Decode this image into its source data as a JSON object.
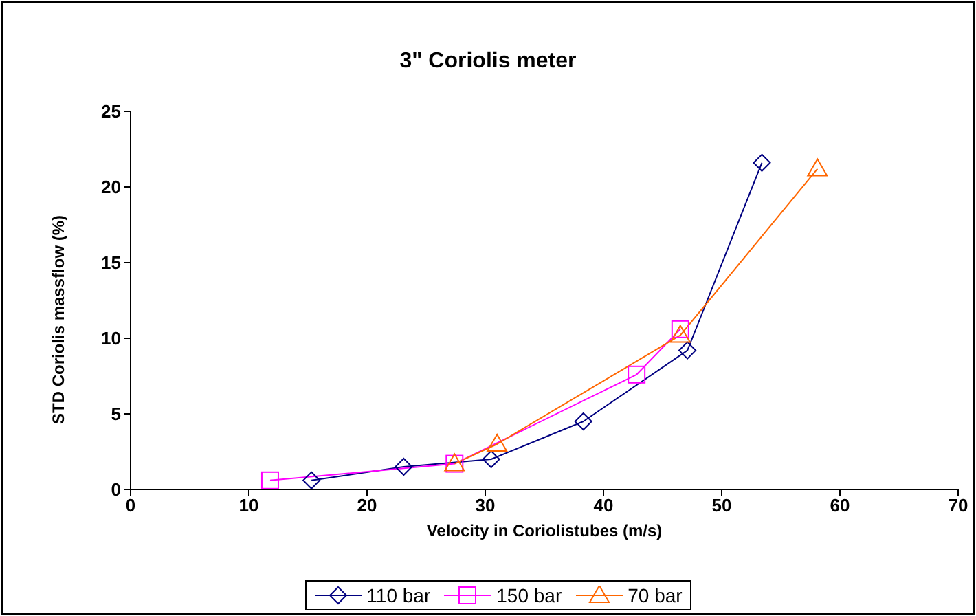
{
  "chart_data": {
    "type": "line",
    "title": "3\" Coriolis meter",
    "xlabel": "Velocity in Coriolistubes (m/s)",
    "ylabel": "STD Coriolis massflow (%)",
    "xlim": [
      0,
      70
    ],
    "xticks": [
      0,
      10,
      20,
      30,
      40,
      50,
      60,
      70
    ],
    "ylim": [
      0,
      25
    ],
    "yticks": [
      0,
      5,
      10,
      15,
      20,
      25
    ],
    "grid": false,
    "legend": "bottom",
    "series": [
      {
        "name": "110 bar",
        "color": "#000080",
        "marker": "diamond",
        "x": [
          15.3,
          23.1,
          30.5,
          38.3,
          47.1,
          53.4
        ],
        "values": [
          0.6,
          1.5,
          2.0,
          4.5,
          9.2,
          21.6
        ]
      },
      {
        "name": "150 bar",
        "color": "#ff00ff",
        "marker": "square",
        "x": [
          11.8,
          27.4,
          42.8,
          46.5
        ],
        "values": [
          0.6,
          1.7,
          7.6,
          10.6
        ]
      },
      {
        "name": "70 bar",
        "color": "#ff6600",
        "marker": "triangle",
        "x": [
          27.4,
          31.0,
          46.5,
          58.1
        ],
        "values": [
          1.7,
          3.0,
          10.2,
          21.2
        ]
      }
    ]
  }
}
